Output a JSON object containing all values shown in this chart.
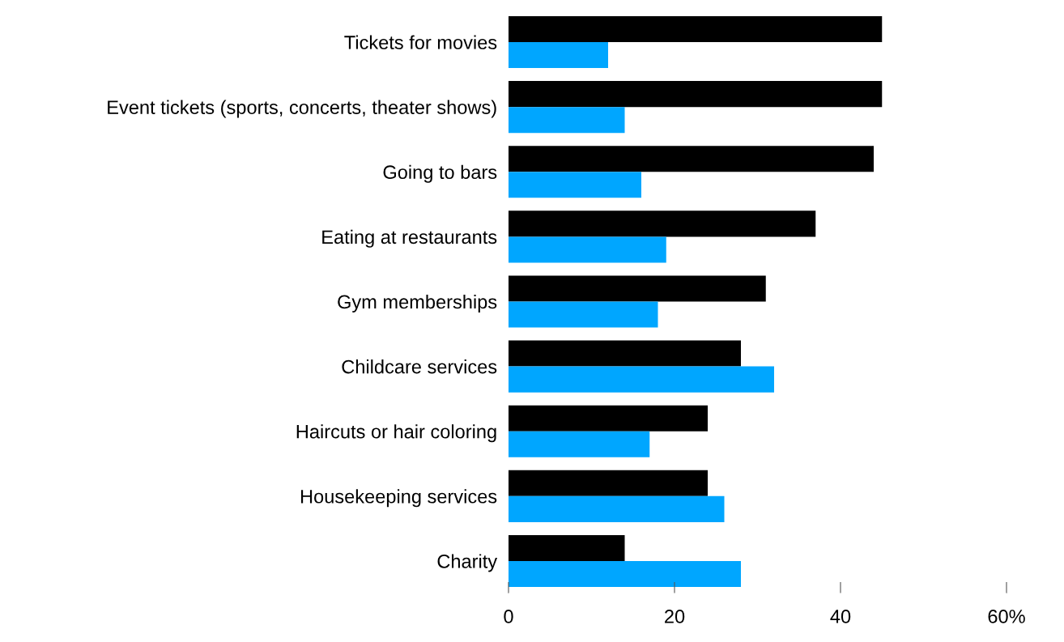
{
  "chart_data": {
    "type": "bar",
    "orientation": "horizontal",
    "categories": [
      "Tickets for movies",
      "Event tickets (sports, concerts, theater shows)",
      "Going to bars",
      "Eating at restaurants",
      "Gym memberships",
      "Childcare services",
      "Haircuts or hair coloring",
      "Housekeeping services",
      "Charity"
    ],
    "series": [
      {
        "color": "#000000",
        "values": [
          45,
          45,
          44,
          37,
          31,
          28,
          24,
          24,
          14
        ]
      },
      {
        "color": "#00a6ff",
        "values": [
          12,
          14,
          16,
          19,
          18,
          32,
          17,
          26,
          28
        ]
      }
    ],
    "xlim": [
      0,
      60
    ],
    "xticks": [
      0,
      20,
      40,
      {
        "value": 60,
        "label": "60%"
      }
    ],
    "grid": false
  }
}
